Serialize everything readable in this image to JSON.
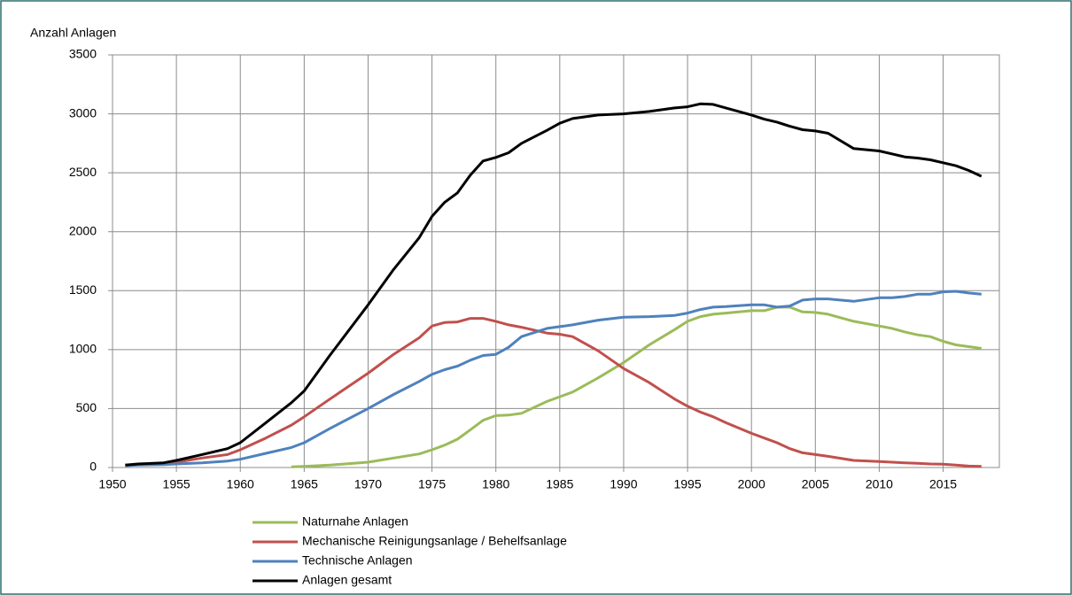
{
  "chart_data": {
    "type": "line",
    "y_label": "Anzahl Anlagen",
    "x": [
      1951,
      1952,
      1954,
      1955,
      1957,
      1959,
      1960,
      1962,
      1964,
      1965,
      1967,
      1970,
      1972,
      1974,
      1975,
      1976,
      1977,
      1978,
      1979,
      1980,
      1981,
      1982,
      1984,
      1985,
      1986,
      1988,
      1990,
      1992,
      1994,
      1995,
      1996,
      1997,
      1998,
      2000,
      2001,
      2002,
      2003,
      2004,
      2005,
      2006,
      2008,
      2010,
      2011,
      2012,
      2013,
      2014,
      2015,
      2016,
      2017,
      2018
    ],
    "series": [
      {
        "name": "Naturnahe Anlagen",
        "color": "#9bbb59",
        "values": [
          null,
          null,
          null,
          null,
          null,
          null,
          null,
          null,
          5,
          10,
          20,
          45,
          80,
          115,
          150,
          190,
          240,
          320,
          400,
          440,
          445,
          460,
          560,
          600,
          640,
          760,
          890,
          1040,
          1170,
          1240,
          1280,
          1300,
          1310,
          1330,
          1330,
          1360,
          1360,
          1320,
          1315,
          1300,
          1240,
          1200,
          1180,
          1150,
          1125,
          1110,
          1070,
          1040,
          1025,
          1010
        ]
      },
      {
        "name": "Mechanische Reinigungsanlage / Behelfsanlage",
        "color": "#c0504d",
        "values": [
          20,
          25,
          35,
          45,
          80,
          110,
          150,
          250,
          360,
          430,
          580,
          800,
          960,
          1100,
          1200,
          1230,
          1235,
          1265,
          1265,
          1240,
          1210,
          1190,
          1140,
          1130,
          1110,
          990,
          840,
          720,
          580,
          520,
          470,
          430,
          380,
          290,
          250,
          210,
          160,
          125,
          110,
          95,
          60,
          50,
          45,
          40,
          35,
          30,
          28,
          20,
          12,
          10
        ]
      },
      {
        "name": "Technische Anlagen",
        "color": "#4f81bd",
        "values": [
          15,
          20,
          25,
          30,
          40,
          55,
          70,
          120,
          170,
          210,
          330,
          500,
          620,
          730,
          790,
          830,
          860,
          910,
          950,
          960,
          1020,
          1110,
          1180,
          1195,
          1210,
          1250,
          1275,
          1280,
          1290,
          1310,
          1340,
          1360,
          1365,
          1380,
          1380,
          1360,
          1370,
          1420,
          1430,
          1430,
          1410,
          1440,
          1440,
          1450,
          1470,
          1470,
          1490,
          1495,
          1480,
          1470
        ]
      },
      {
        "name": "Anlagen gesamt",
        "color": "#000000",
        "values": [
          20,
          30,
          40,
          60,
          110,
          160,
          210,
          380,
          550,
          650,
          950,
          1380,
          1680,
          1950,
          2130,
          2250,
          2330,
          2480,
          2600,
          2630,
          2670,
          2750,
          2860,
          2920,
          2960,
          2990,
          3000,
          3020,
          3050,
          3060,
          3085,
          3080,
          3050,
          2990,
          2955,
          2930,
          2895,
          2865,
          2855,
          2835,
          2705,
          2685,
          2660,
          2635,
          2625,
          2610,
          2585,
          2560,
          2520,
          2470
        ]
      }
    ],
    "xlim": [
      1950,
      2019.4
    ],
    "xticks": [
      1950,
      1955,
      1960,
      1965,
      1970,
      1975,
      1980,
      1985,
      1990,
      1995,
      2000,
      2005,
      2010,
      2015
    ],
    "ylim": [
      0,
      3500
    ],
    "yticks": [
      0,
      500,
      1000,
      1500,
      2000,
      2500,
      3000,
      3500
    ],
    "grid": true
  }
}
